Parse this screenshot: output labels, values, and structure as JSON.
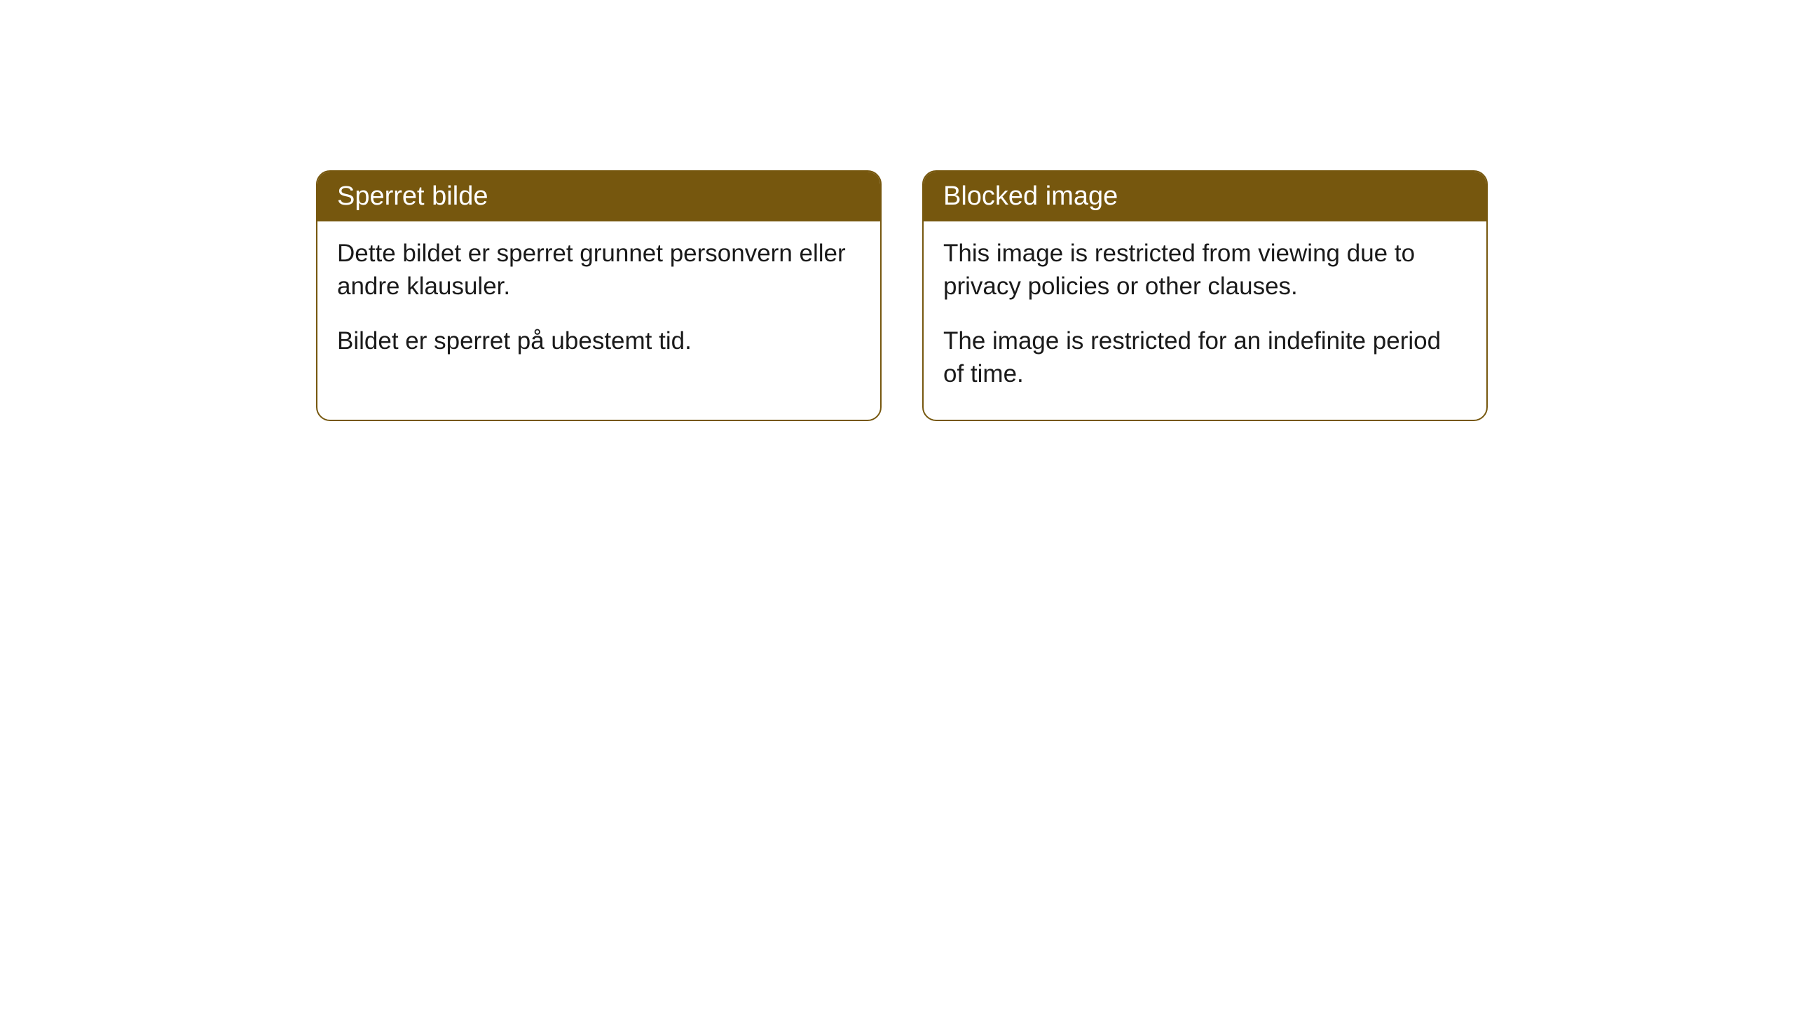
{
  "cards": [
    {
      "title": "Sperret bilde",
      "paragraph1": "Dette bildet er sperret grunnet personvern eller andre klausuler.",
      "paragraph2": "Bildet er sperret på ubestemt tid."
    },
    {
      "title": "Blocked image",
      "paragraph1": "This image is restricted from viewing due to privacy policies or other clauses.",
      "paragraph2": "The image is restricted for an indefinite period of time."
    }
  ],
  "styling": {
    "header_bg_color": "#76570e",
    "header_text_color": "#ffffff",
    "border_color": "#76570e",
    "body_bg_color": "#ffffff",
    "body_text_color": "#1a1a1a",
    "border_radius": 20,
    "header_fontsize": 38,
    "body_fontsize": 35
  }
}
